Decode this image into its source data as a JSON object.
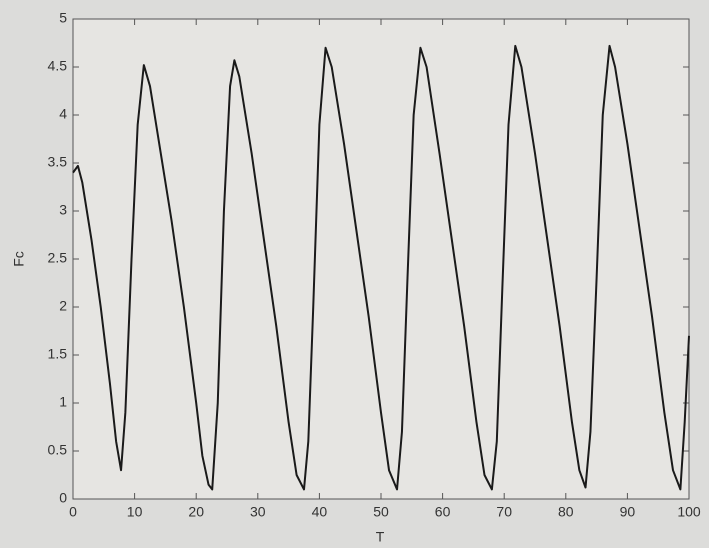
{
  "chart_data": {
    "type": "line",
    "x_label": "T",
    "y_label": "Fc",
    "x": [
      0,
      0.8,
      1.5,
      3,
      4.5,
      6,
      7,
      7.8,
      8.5,
      9.5,
      10.5,
      11.5,
      12.5,
      14,
      16,
      18,
      20,
      21,
      22,
      22.6,
      23.5,
      24.5,
      25.5,
      26.2,
      27,
      29,
      31,
      33,
      35,
      36.3,
      37.5,
      38.2,
      39,
      40,
      41,
      42,
      44,
      46,
      48,
      50,
      51.3,
      52.6,
      53.4,
      54.3,
      55.3,
      56.4,
      57.4,
      59.5,
      61.5,
      63.5,
      65.5,
      66.8,
      68,
      68.8,
      69.7,
      70.7,
      71.8,
      72.8,
      75,
      77,
      79,
      81,
      82.2,
      83.2,
      84,
      85,
      86,
      87.1,
      88,
      90,
      92,
      94,
      96,
      97.4,
      98.6,
      99.3,
      100
    ],
    "series": [
      {
        "name": "Fc",
        "color": "#1a1a1a",
        "values": [
          3.4,
          3.47,
          3.3,
          2.7,
          2.0,
          1.2,
          0.6,
          0.3,
          0.9,
          2.5,
          3.9,
          4.52,
          4.3,
          3.7,
          2.9,
          2.0,
          1.0,
          0.45,
          0.15,
          0.1,
          1.0,
          3.0,
          4.3,
          4.57,
          4.4,
          3.6,
          2.7,
          1.8,
          0.8,
          0.25,
          0.1,
          0.6,
          2.0,
          3.9,
          4.7,
          4.5,
          3.7,
          2.8,
          1.9,
          0.9,
          0.3,
          0.1,
          0.7,
          2.3,
          4.0,
          4.7,
          4.5,
          3.6,
          2.7,
          1.8,
          0.8,
          0.25,
          0.1,
          0.6,
          2.2,
          3.9,
          4.72,
          4.5,
          3.6,
          2.7,
          1.8,
          0.8,
          0.3,
          0.12,
          0.7,
          2.3,
          4.0,
          4.72,
          4.5,
          3.7,
          2.8,
          1.9,
          0.9,
          0.3,
          0.1,
          0.8,
          1.7
        ]
      }
    ],
    "xlim": [
      0,
      100
    ],
    "ylim": [
      0,
      5
    ],
    "xticks": [
      0,
      10,
      20,
      30,
      40,
      50,
      60,
      70,
      80,
      90,
      100
    ],
    "yticks": [
      0,
      0.5,
      1,
      1.5,
      2,
      2.5,
      3,
      3.5,
      4,
      4.5,
      5
    ]
  }
}
